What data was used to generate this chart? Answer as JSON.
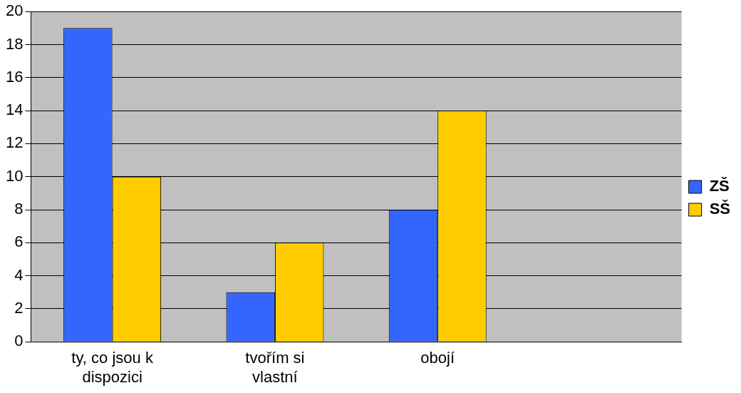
{
  "chart_data": {
    "type": "bar",
    "categories": [
      "ty, co jsou k dispozici",
      "tvořím si vlastní",
      "obojí",
      null
    ],
    "series": [
      {
        "name": "ZŠ",
        "color": "#3366ff",
        "values": [
          19,
          3,
          8,
          null
        ]
      },
      {
        "name": "SŠ",
        "color": "#ffcc00",
        "values": [
          10,
          6,
          14,
          null
        ]
      }
    ],
    "ylim": [
      0,
      20
    ],
    "yticks": [
      0,
      2,
      4,
      6,
      8,
      10,
      12,
      14,
      16,
      18,
      20
    ],
    "grid": "y",
    "legend": "right"
  }
}
